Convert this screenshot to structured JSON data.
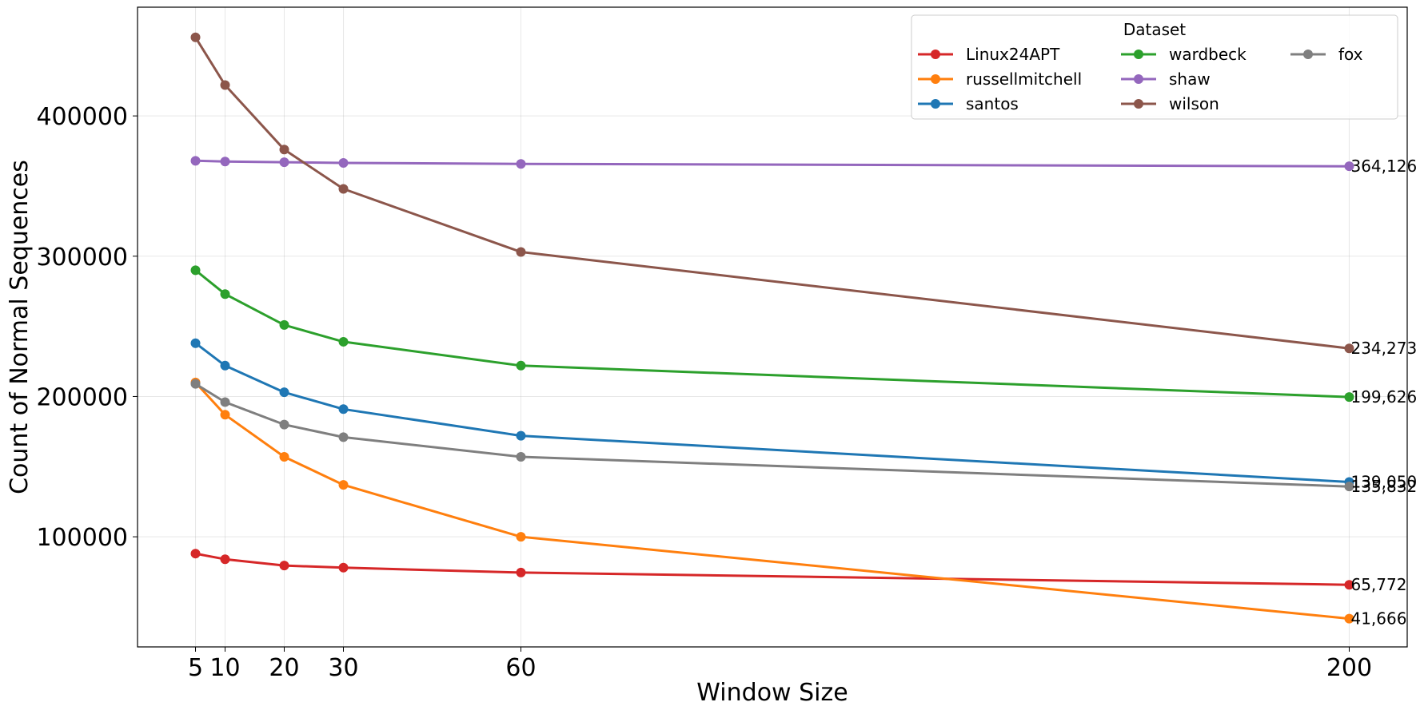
{
  "chart_data": {
    "type": "line",
    "xlabel": "Window Size",
    "ylabel": "Count of Normal Sequences",
    "x": [
      5,
      10,
      20,
      30,
      60,
      200
    ],
    "x_ticks": [
      "5",
      "10",
      "20",
      "30",
      "60",
      "200"
    ],
    "y_ticks": [
      "100000",
      "200000",
      "300000",
      "400000"
    ],
    "xlim": [
      -4.8,
      209.8
    ],
    "ylim": [
      21500,
      477500
    ],
    "grid": true,
    "legend": {
      "title": "Dataset",
      "placement": "top-right",
      "columns": 3
    },
    "series": [
      {
        "name": "Linux24APT",
        "color": "#d62728",
        "values": [
          88000,
          84000,
          79500,
          78000,
          74500,
          65772
        ],
        "end_label": "65,772"
      },
      {
        "name": "russellmitchell",
        "color": "#ff7f0e",
        "values": [
          210000,
          187000,
          157000,
          137000,
          100000,
          41666
        ],
        "end_label": "41,666"
      },
      {
        "name": "santos",
        "color": "#1f77b4",
        "values": [
          238000,
          222000,
          203000,
          191000,
          172000,
          139050
        ],
        "end_label": "139,050"
      },
      {
        "name": "wardbeck",
        "color": "#2ca02c",
        "values": [
          290000,
          273000,
          251000,
          239000,
          222000,
          199626
        ],
        "end_label": "199,626"
      },
      {
        "name": "shaw",
        "color": "#9467bd",
        "values": [
          368000,
          367500,
          367000,
          366500,
          365800,
          364126
        ],
        "end_label": "364,126"
      },
      {
        "name": "wilson",
        "color": "#8c564b",
        "values": [
          456000,
          422000,
          376000,
          348000,
          303000,
          234273
        ],
        "end_label": "234,273"
      },
      {
        "name": "fox",
        "color": "#7f7f7f",
        "values": [
          209000,
          196000,
          180000,
          171000,
          157000,
          135832
        ],
        "end_label": "135,832"
      }
    ]
  }
}
